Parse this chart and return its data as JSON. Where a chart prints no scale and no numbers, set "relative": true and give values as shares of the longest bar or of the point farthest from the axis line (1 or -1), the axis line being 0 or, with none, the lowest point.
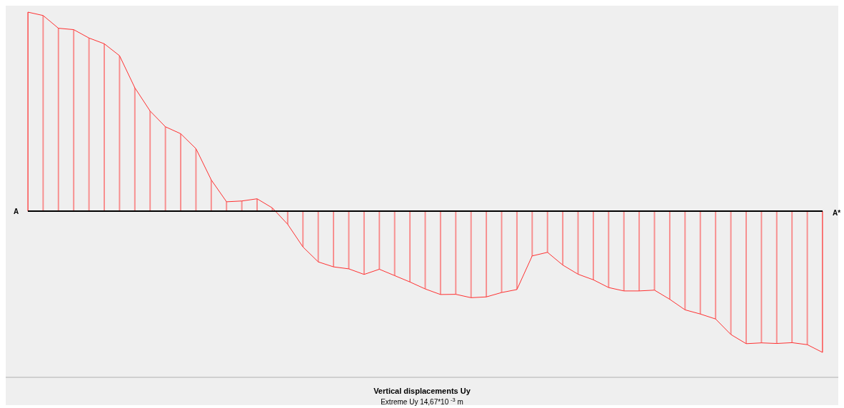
{
  "chart_data": {
    "type": "area",
    "title": "Vertical displacements Uy",
    "subtitle": "Extreme Uy 14,67*10 $^{-3}$ m",
    "relative": true,
    "marker": "none",
    "color": "#ff3030",
    "annotations": [
      "A",
      "A*"
    ],
    "categories": [
      null,
      null,
      null,
      null,
      null,
      null,
      null,
      null,
      null,
      null,
      null,
      null,
      null,
      null,
      null,
      null,
      null,
      null,
      null,
      null,
      null,
      null,
      null,
      null,
      null,
      null,
      null,
      null,
      null,
      null,
      null,
      null,
      null,
      null,
      null,
      null,
      null,
      null,
      null,
      null,
      null,
      null,
      null,
      null,
      null,
      null,
      null,
      null,
      null,
      null,
      null,
      null,
      null
    ],
    "values": [
      1.0,
      0.983,
      0.919,
      0.912,
      0.87,
      0.841,
      0.781,
      0.62,
      0.503,
      0.424,
      0.389,
      0.314,
      0.157,
      0.047,
      0.051,
      0.062,
      0.016,
      -0.066,
      -0.18,
      -0.255,
      -0.28,
      -0.29,
      -0.318,
      -0.292,
      -0.324,
      -0.356,
      -0.391,
      -0.419,
      -0.418,
      -0.435,
      -0.431,
      -0.409,
      -0.394,
      -0.225,
      -0.207,
      -0.271,
      -0.317,
      -0.345,
      -0.384,
      -0.401,
      -0.401,
      -0.397,
      -0.443,
      -0.496,
      -0.517,
      -0.542,
      -0.62,
      -0.666,
      -0.662,
      -0.665,
      -0.661,
      -0.671,
      -0.71
    ]
  }
}
